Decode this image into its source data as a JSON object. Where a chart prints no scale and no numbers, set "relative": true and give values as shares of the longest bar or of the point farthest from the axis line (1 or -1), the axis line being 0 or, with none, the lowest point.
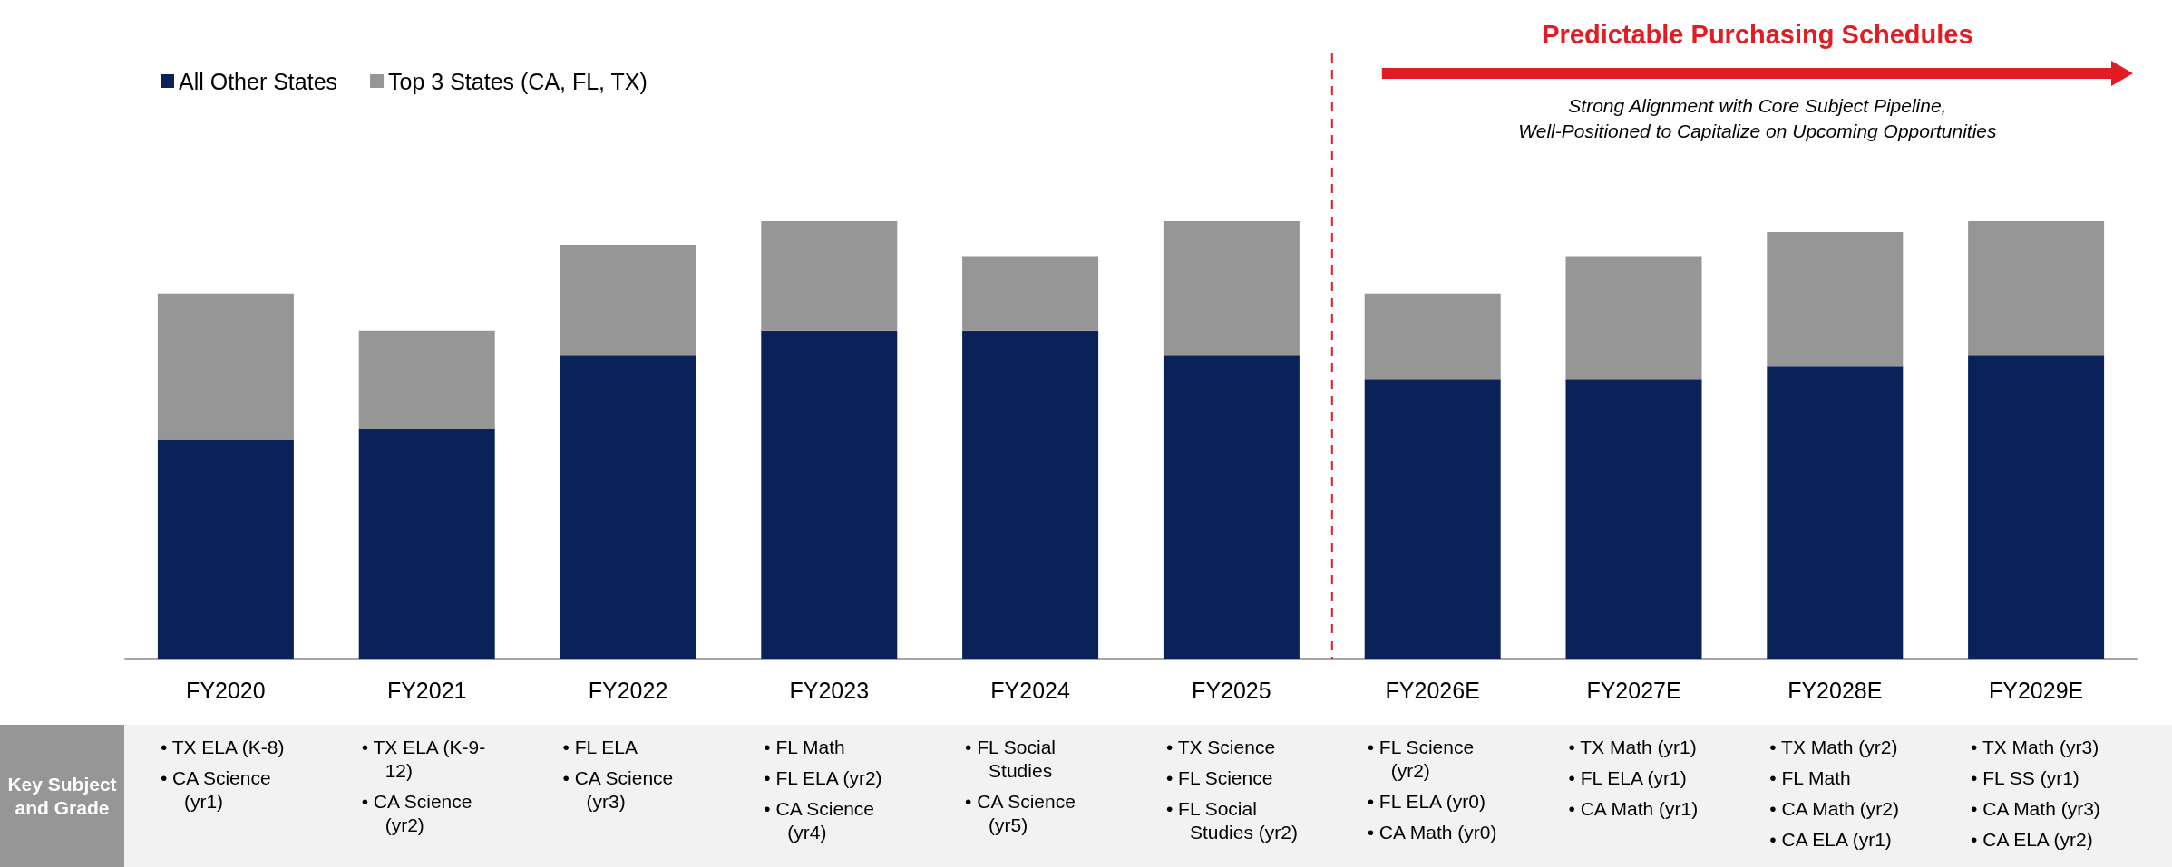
{
  "chart_data": {
    "type": "bar",
    "stacked": true,
    "relative": true,
    "legend": "top left",
    "categories": [
      "FY2020",
      "FY2021",
      "FY2022",
      "FY2023",
      "FY2024",
      "FY2025",
      "FY2026E",
      "FY2027E",
      "FY2028E",
      "FY2029E"
    ],
    "series": [
      {
        "name": "All Other States",
        "color": "#0a2258",
        "values": [
          0.5,
          0.525,
          0.693,
          0.75,
          0.75,
          0.693,
          0.639,
          0.639,
          0.668,
          0.693
        ]
      },
      {
        "name": "Top 3 States (CA, FL, TX)",
        "color": "#969696",
        "values": [
          0.335,
          0.225,
          0.253,
          0.25,
          0.168,
          0.307,
          0.196,
          0.279,
          0.307,
          0.307
        ]
      }
    ],
    "ref_lines": [
      {
        "axis": "x",
        "value": "FY2026E",
        "color": "#e31b23",
        "line_style": "dashed"
      }
    ],
    "annotations": [
      "Predictable Purchasing Schedules",
      "Strong Alignment with Core Subject Pipeline,\nWell-Positioned to Capitalize on Upcoming Opportunities",
      "Key Subject and Grade",
      "• TX ELA (K-8)\n• CA Science (yr1)",
      "• TX ELA (K-9-12)\n• CA Science (yr2)",
      "• FL ELA\n• CA Science (yr3)",
      "• FL Math\n• FL ELA (yr2)\n• CA Science (yr4)",
      "• FL Social Studies\n• CA Science (yr5)",
      "• TX Science\n• FL Science\n• FL Social Studies (yr2)",
      "• FL Science (yr2)\n• FL ELA (yr0)\n• CA Math (yr0)",
      "• TX Math (yr1)\n• FL ELA (yr1)\n• CA Math (yr1)",
      "• TX Math (yr2)\n• FL Math\n• CA Math (yr2)\n• CA ELA (yr1)",
      "• TX Math (yr3)\n• FL SS (yr1)\n• CA Math (yr3)\n• CA ELA (yr2)"
    ]
  }
}
